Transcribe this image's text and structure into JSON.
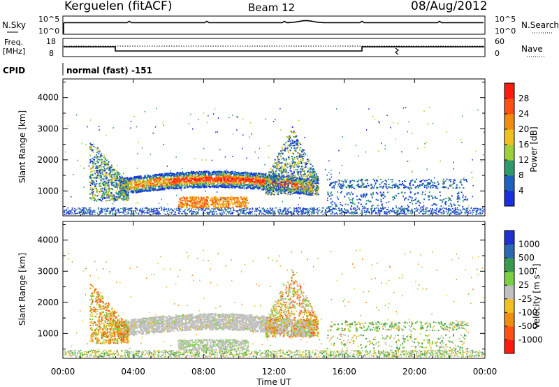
{
  "header": {
    "station": "Kerguelen (fitACF)",
    "beam": "Beam 12",
    "date": "08/Aug/2012"
  },
  "nsky": {
    "label": "N.Sky",
    "tick_hi": "10^5",
    "tick_lo": "10^0",
    "right_label": "N.Search"
  },
  "freq": {
    "label_top": "Freq.",
    "label_bot": "[MHz]",
    "tick_hi": "18",
    "tick_lo": "8",
    "nave_hi": "60",
    "nave_lo": "0",
    "right_label": "Nave"
  },
  "cpid": {
    "label": "CPID",
    "value": "normal (fast) -151"
  },
  "time_axis": {
    "label": "Time UT",
    "ticks": [
      "00:00",
      "04:00",
      "08:00",
      "12:00",
      "16:00",
      "20:00",
      "00:00"
    ]
  },
  "chart_data": [
    {
      "type": "heatmap",
      "name": "Power",
      "ylabel": "Slant Range [km]",
      "yticks": [
        "1000",
        "2000",
        "3000",
        "4000"
      ],
      "ylim": [
        200,
        4600
      ],
      "xlim_hours": [
        0,
        24
      ],
      "colorbar_label": "Power [dB]",
      "colorbar_ticks": [
        "4",
        "8",
        "12",
        "16",
        "20",
        "24",
        "28"
      ],
      "colorbar_colors": [
        "#1a2ee0",
        "#2060c0",
        "#2f9a6a",
        "#9ed03a",
        "#f0c020",
        "#f08c10",
        "#ff5010",
        "#ff1a10"
      ]
    },
    {
      "type": "heatmap",
      "name": "Velocity",
      "ylabel": "Slant Range [km]",
      "yticks": [
        "1000",
        "2000",
        "3000",
        "4000"
      ],
      "ylim": [
        200,
        4600
      ],
      "xlim_hours": [
        0,
        24
      ],
      "colorbar_label": "Velocity [m s⁻¹]",
      "colorbar_ticks": [
        "1000",
        "500",
        "100",
        "25",
        "-25",
        "-100",
        "-500",
        "-1000"
      ],
      "colorbar_colors": [
        "#2030d0",
        "#2b6ab0",
        "#3a9a50",
        "#7ad040",
        "#c0c0c0",
        "#f0c020",
        "#f08c10",
        "#ff5010",
        "#ff1a10"
      ]
    }
  ]
}
